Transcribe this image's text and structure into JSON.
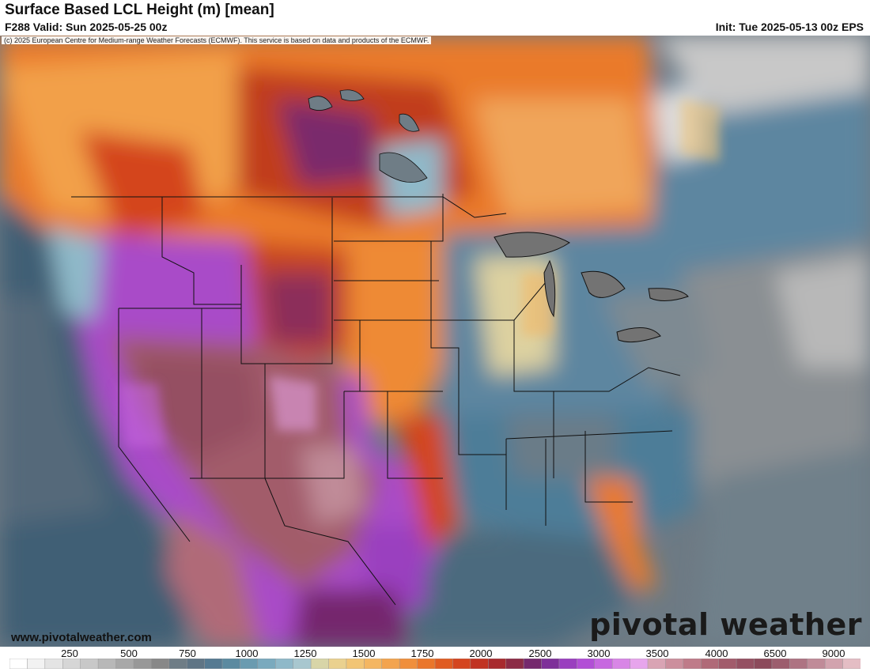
{
  "header": {
    "title": "Surface Based LCL Height (m) [mean]",
    "valid": "F288 Valid: Sun 2025-05-25 00z",
    "init": "Init: Tue 2025-05-13 00z EPS"
  },
  "map": {
    "copyright": "(c) 2025 European Centre for Medium-range Weather Forecasts (ECMWF). This service is based on data and products of the ECMWF.",
    "website": "www.pivotalweather.com",
    "logo": "pivotal weather"
  },
  "colorbar": {
    "labels": [
      "250",
      "500",
      "750",
      "1000",
      "1250",
      "1500",
      "1750",
      "2000",
      "2500",
      "3000",
      "3500",
      "4000",
      "6500",
      "9000"
    ],
    "colors": [
      "#ffffff",
      "#f2f2f2",
      "#e4e4e4",
      "#d6d6d6",
      "#c8c8c8",
      "#b8b8b8",
      "#a8a8a8",
      "#989898",
      "#888888",
      "#6f7d86",
      "#5f7585",
      "#557a92",
      "#5b8aa0",
      "#6a9bb0",
      "#7aaabe",
      "#8fb9c9",
      "#a8c7cf",
      "#d8d5a8",
      "#ead18f",
      "#f2c575",
      "#f4b662",
      "#f3a44f",
      "#f08f3c",
      "#ea762b",
      "#e05c22",
      "#d4451f",
      "#c13322",
      "#a82a2e",
      "#8c2b46",
      "#75286d",
      "#7e2f99",
      "#9a3fbf",
      "#b24fd6",
      "#c768e0",
      "#d886e6",
      "#e7a5ec",
      "#d9a4b4",
      "#cc8f9d",
      "#bf7b89",
      "#b06a78",
      "#a25b6b",
      "#955062",
      "#8c4a5b",
      "#9c5d6d",
      "#ae7382",
      "#c08b98",
      "#d2a3ae",
      "#e4bdc4"
    ]
  }
}
